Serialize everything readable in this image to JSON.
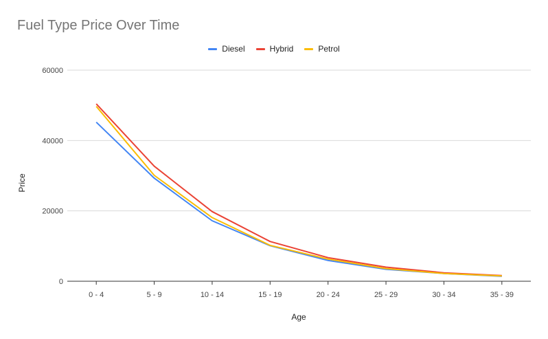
{
  "chart_data": {
    "type": "line",
    "title": "Fuel Type Price Over Time",
    "xlabel": "Age",
    "ylabel": "Price",
    "categories": [
      "0 - 4",
      "5 - 9",
      "10 - 14",
      "15 - 19",
      "20 - 24",
      "25 - 29",
      "30 - 34",
      "35 - 39"
    ],
    "ylim": [
      0,
      60000
    ],
    "yticks": [
      "0",
      "20000",
      "40000",
      "60000"
    ],
    "grid": true,
    "legend_position": "top-center",
    "series": [
      {
        "name": "Diesel",
        "color": "#4285F4",
        "values": [
          45200,
          29300,
          17200,
          10100,
          5900,
          3400,
          2200,
          1400
        ]
      },
      {
        "name": "Hybrid",
        "color": "#EA4335",
        "values": [
          50400,
          32700,
          19800,
          11300,
          6700,
          4000,
          2400,
          1600
        ]
      },
      {
        "name": "Petrol",
        "color": "#FBBC04",
        "values": [
          49700,
          30100,
          18100,
          10200,
          6300,
          3600,
          2200,
          1500
        ]
      }
    ]
  }
}
